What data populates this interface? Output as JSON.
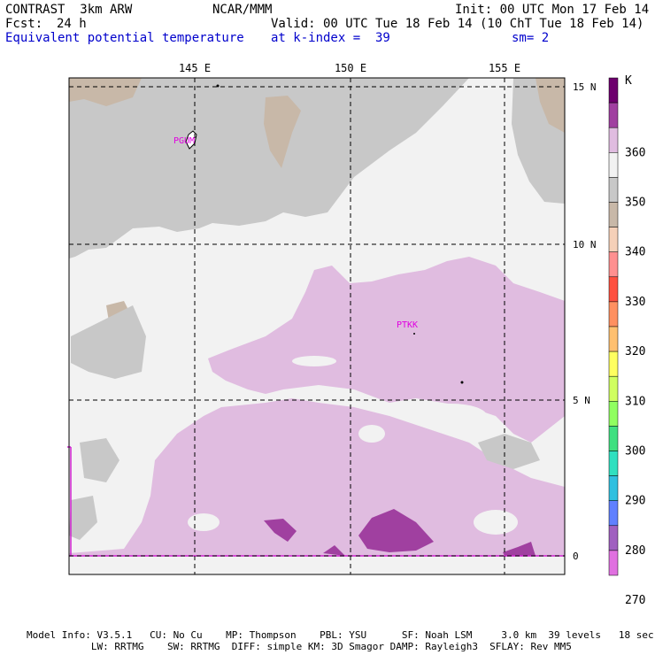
{
  "header": {
    "model": "CONTRAST  3km ARW",
    "org": "NCAR/MMM",
    "init": "Init: 00 UTC Mon 17 Feb 14",
    "fcst_label": "Fcst:",
    "fcst_value": "24 h",
    "valid": "Valid: 00 UTC Tue 18 Feb 14 (10 ChT Tue 18 Feb 14)",
    "field": "Equivalent potential temperature",
    "level": "at k-index =  39",
    "smoothing": "sm= 2"
  },
  "map": {
    "lon_labels": [
      "145 E",
      "150 E",
      "155 E"
    ],
    "lat_labels": [
      "15 N",
      "10 N",
      "5 N",
      "0"
    ],
    "stations": [
      "PGUM",
      "PTKK"
    ]
  },
  "colorbar": {
    "unit": "K",
    "labels": [
      "360",
      "350",
      "340",
      "330",
      "320",
      "310",
      "300",
      "290",
      "280",
      "270"
    ],
    "colors": [
      "#6e006e",
      "#a040a0",
      "#e0bce0",
      "#f2f2f2",
      "#c8c8c8",
      "#c8b8a8",
      "#f5d0b8",
      "#ff9090",
      "#ff5040",
      "#ff9060",
      "#ffc070",
      "#ffff60",
      "#d0ff60",
      "#90ff60",
      "#40e080",
      "#30e0c0",
      "#30c0e0",
      "#6080ff",
      "#a060c0",
      "#e070e0"
    ]
  },
  "footer": {
    "line1": "Model Info: V3.5.1   CU: No Cu    MP: Thompson    PBL: YSU      SF: Noah LSM     3.0 km  39 levels   18 sec",
    "line2": "           LW: RRTMG    SW: RRTMG  DIFF: simple KM: 3D Smagor DAMP: Rayleigh3  SFLAY: Rev MM5"
  }
}
